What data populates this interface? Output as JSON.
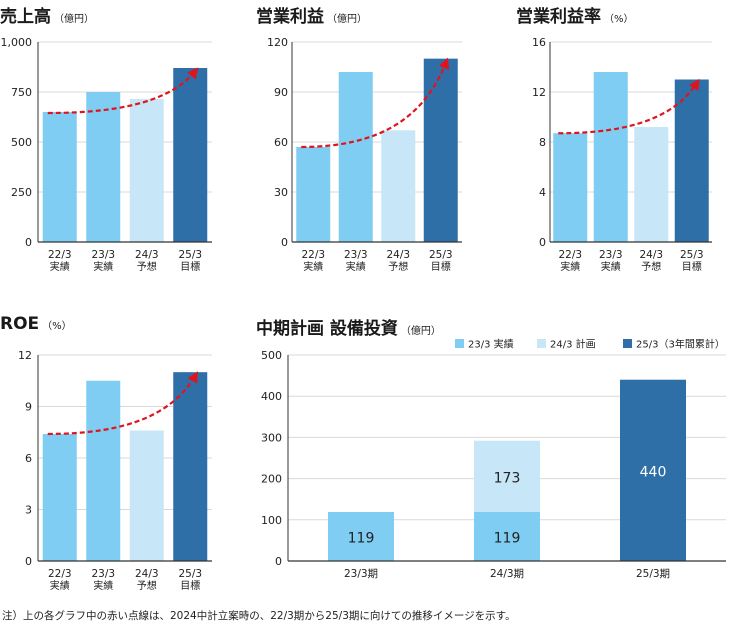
{
  "colors": {
    "light": "#7fcdf3",
    "pale": "#c7e6f8",
    "dark": "#2e6fa7",
    "trend": "#e0141e",
    "axis": "#333333",
    "grid": "#d9d9d9"
  },
  "footnote": "注）上の各グラフ中の赤い点線は、2024中計立案時の、22/3期から25/3期に向けての推移イメージを示す。",
  "chart_data": [
    {
      "id": "sales",
      "type": "bar",
      "title": "売上高",
      "unit": "（億円）",
      "categories": [
        "22/3",
        "23/3",
        "24/3",
        "25/3"
      ],
      "category_sub": [
        "実績",
        "実績",
        "予想",
        "目標"
      ],
      "values": [
        650,
        750,
        715,
        870
      ],
      "bar_colors": [
        "light",
        "light",
        "pale",
        "dark"
      ],
      "ylim": [
        0,
        1000
      ],
      "yticks": [
        0,
        250,
        500,
        750,
        1000
      ],
      "ytick_labels": [
        "0",
        "250",
        "500",
        "750",
        "1,000"
      ],
      "trend_line": {
        "style": "dashed-arrow",
        "from_value": 645,
        "to_value": 870
      }
    },
    {
      "id": "op",
      "type": "bar",
      "title": "営業利益",
      "unit": "（億円）",
      "categories": [
        "22/3",
        "23/3",
        "24/3",
        "25/3"
      ],
      "category_sub": [
        "実績",
        "実績",
        "予想",
        "目標"
      ],
      "values": [
        57,
        102,
        67,
        110
      ],
      "bar_colors": [
        "light",
        "light",
        "pale",
        "dark"
      ],
      "ylim": [
        0,
        120
      ],
      "yticks": [
        0,
        30,
        60,
        90,
        120
      ],
      "ytick_labels": [
        "0",
        "30",
        "60",
        "90",
        "120"
      ],
      "trend_line": {
        "style": "dashed-arrow",
        "from_value": 57,
        "to_value": 110
      }
    },
    {
      "id": "opm",
      "type": "bar",
      "title": "営業利益率",
      "unit": "（%）",
      "categories": [
        "22/3",
        "23/3",
        "24/3",
        "25/3"
      ],
      "category_sub": [
        "実績",
        "実績",
        "予想",
        "目標"
      ],
      "values": [
        8.7,
        13.6,
        9.2,
        13.0
      ],
      "bar_colors": [
        "light",
        "light",
        "pale",
        "dark"
      ],
      "ylim": [
        0,
        16
      ],
      "yticks": [
        0,
        4,
        8,
        12,
        16
      ],
      "ytick_labels": [
        "0",
        "4",
        "8",
        "12",
        "16"
      ],
      "trend_line": {
        "style": "dashed-arrow",
        "from_value": 8.7,
        "to_value": 13.0
      }
    },
    {
      "id": "roe",
      "type": "bar",
      "title": "ROE",
      "unit": "（%）",
      "categories": [
        "22/3",
        "23/3",
        "24/3",
        "25/3"
      ],
      "category_sub": [
        "実績",
        "実績",
        "予想",
        "目標"
      ],
      "values": [
        7.4,
        10.5,
        7.6,
        11.0
      ],
      "bar_colors": [
        "light",
        "light",
        "pale",
        "dark"
      ],
      "ylim": [
        0,
        12
      ],
      "yticks": [
        0,
        3,
        6,
        9,
        12
      ],
      "ytick_labels": [
        "0",
        "3",
        "6",
        "9",
        "12"
      ],
      "trend_line": {
        "style": "dashed-arrow",
        "from_value": 7.4,
        "to_value": 11.0
      }
    },
    {
      "id": "capex",
      "type": "stacked-bar",
      "title": "中期計画 設備投資",
      "unit": "（億円）",
      "categories": [
        "23/3期",
        "24/3期",
        "25/3期"
      ],
      "ylim": [
        0,
        500
      ],
      "yticks": [
        0,
        100,
        200,
        300,
        400,
        500
      ],
      "ytick_labels": [
        "0",
        "100",
        "200",
        "300",
        "400",
        "500"
      ],
      "legend": [
        "23/3 実績",
        "24/3 計画",
        "25/3（3年間累計）"
      ],
      "legend_colors": [
        "light",
        "pale",
        "dark"
      ],
      "legend_position": "top-right",
      "series": [
        {
          "name": "23/3 実績",
          "color": "light",
          "values": [
            119,
            119,
            0
          ],
          "labels": [
            "119",
            "119",
            ""
          ]
        },
        {
          "name": "24/3 計画",
          "color": "pale",
          "values": [
            0,
            173,
            0
          ],
          "labels": [
            "",
            "173",
            ""
          ]
        },
        {
          "name": "25/3（3年間累計）",
          "color": "dark",
          "values": [
            0,
            0,
            440
          ],
          "labels": [
            "",
            "",
            "440"
          ]
        }
      ]
    }
  ]
}
